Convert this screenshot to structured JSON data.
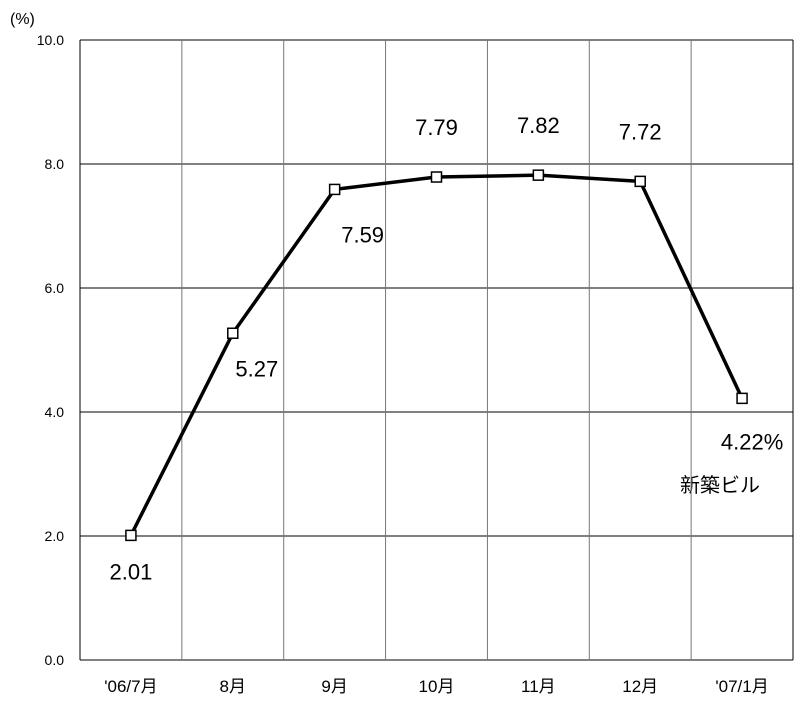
{
  "chart_data": {
    "type": "line",
    "unit_label": "(%)",
    "ylim": [
      0,
      10
    ],
    "y_ticks": [
      "0.0",
      "2.0",
      "4.0",
      "6.0",
      "8.0",
      "10.0"
    ],
    "categories": [
      "'06/7月",
      "8月",
      "9月",
      "10月",
      "11月",
      "12月",
      "'07/1月"
    ],
    "grid": true,
    "series": [
      {
        "name": "新築ビル",
        "values": [
          2.01,
          5.27,
          7.59,
          7.79,
          7.82,
          7.72,
          4.22
        ],
        "data_labels": [
          "2.01",
          "5.27",
          "7.59",
          "7.79",
          "7.82",
          "7.72",
          "4.22%"
        ],
        "color": "#000000",
        "marker": "square"
      }
    ]
  }
}
